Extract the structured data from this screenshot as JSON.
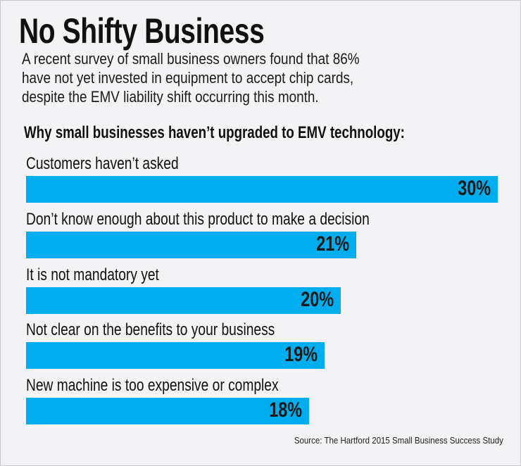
{
  "title": "No Shifty Business",
  "subtitle_lines": [
    "A recent survey of small business owners found that 86%",
    "have not yet invested in equipment to accept chip cards,",
    "despite the EMV liability shift occurring this month."
  ],
  "source": "Source: The Hartford 2015 Small Business Success Study",
  "colors": {
    "bar": "#00aeef",
    "background": "#f3f3f5"
  },
  "chart_data": {
    "type": "bar",
    "orientation": "horizontal",
    "title": "Why small businesses haven’t upgraded to EMV technology:",
    "categories": [
      "Customers haven’t asked",
      "Don’t know enough about this product to make a decision",
      "It is not mandatory yet",
      "Not clear on the benefits to your business",
      "New machine is too expensive or complex"
    ],
    "values": [
      30,
      21,
      20,
      19,
      18
    ],
    "value_labels": [
      "30%",
      "21%",
      "20%",
      "19%",
      "18%"
    ],
    "unit": "%",
    "grid": false
  }
}
